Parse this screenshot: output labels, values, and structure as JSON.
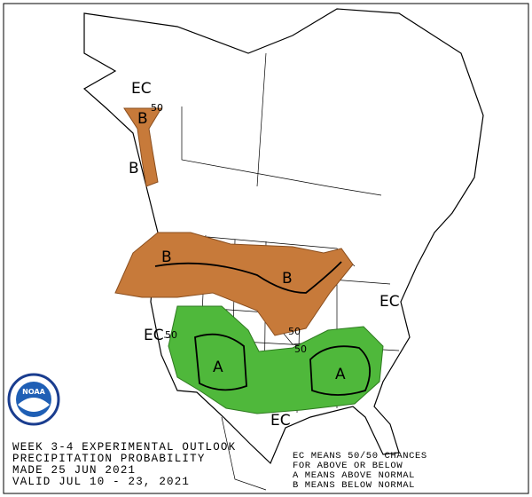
{
  "map": {
    "labels": [
      "EC",
      "50",
      "B",
      "B",
      "B",
      "B",
      "EC",
      "EC",
      "50",
      "50",
      "50",
      "A",
      "A",
      "EC"
    ],
    "logo": "NOAA",
    "footer_left": [
      "WEEK 3-4 EXPERIMENTAL OUTLOOK",
      "PRECIPITATION PROBABILITY",
      "MADE  25 JUN 2021",
      "VALID  JUL 10 - 23, 2021"
    ],
    "footer_right": [
      "EC MEANS 50/50 CHANCES",
      "FOR ABOVE OR BELOW",
      "A MEANS ABOVE NORMAL",
      "B MEANS BELOW NORMAL"
    ]
  }
}
